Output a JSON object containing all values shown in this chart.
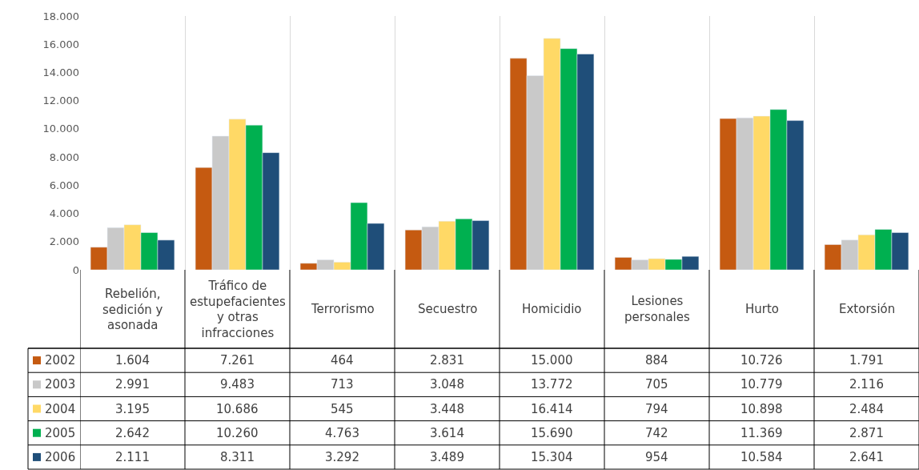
{
  "chart_data": {
    "type": "bar",
    "categories": [
      "Rebelión, sedición y asonada",
      "Tráfico de estupefacientes y otras infracciones",
      "Terrorismo",
      "Secuestro",
      "Homicidio",
      "Lesiones personales",
      "Hurto",
      "Extorsión"
    ],
    "series": [
      {
        "name": "2002",
        "color": "#c55a11",
        "values": [
          1604,
          7261,
          464,
          2831,
          15000,
          884,
          10726,
          1791
        ],
        "value_labels": [
          "1.604",
          "7.261",
          "464",
          "2.831",
          "15.000",
          "884",
          "10.726",
          "1.791"
        ]
      },
      {
        "name": "2003",
        "color": "#c9c9c9",
        "values": [
          2991,
          9483,
          713,
          3048,
          13772,
          705,
          10779,
          2116
        ],
        "value_labels": [
          "2.991",
          "9.483",
          "713",
          "3.048",
          "13.772",
          "705",
          "10.779",
          "2.116"
        ]
      },
      {
        "name": "2004",
        "color": "#ffd966",
        "values": [
          3195,
          10686,
          545,
          3448,
          16414,
          794,
          10898,
          2484
        ],
        "value_labels": [
          "3.195",
          "10.686",
          "545",
          "3.448",
          "16.414",
          "794",
          "10.898",
          "2.484"
        ]
      },
      {
        "name": "2005",
        "color": "#00b050",
        "values": [
          2642,
          10260,
          4763,
          3614,
          15690,
          742,
          11369,
          2871
        ],
        "value_labels": [
          "2.642",
          "10.260",
          "4.763",
          "3.614",
          "15.690",
          "742",
          "11.369",
          "2.871"
        ]
      },
      {
        "name": "2006",
        "color": "#1f4e79",
        "values": [
          2111,
          8311,
          3292,
          3489,
          15304,
          954,
          10584,
          2641
        ],
        "value_labels": [
          "2.111",
          "8.311",
          "3.292",
          "3.489",
          "15.304",
          "954",
          "10.584",
          "2.641"
        ]
      }
    ],
    "legend": "bottom left",
    "ylim": [
      0,
      18000
    ],
    "yticks": [
      {
        "value": 0,
        "label": "0"
      },
      {
        "value": 2000,
        "label": "2.000"
      },
      {
        "value": 4000,
        "label": "4.000"
      },
      {
        "value": 6000,
        "label": "6.000"
      },
      {
        "value": 8000,
        "label": "8.000"
      },
      {
        "value": 10000,
        "label": "10.000"
      },
      {
        "value": 12000,
        "label": "12.000"
      },
      {
        "value": 14000,
        "label": "14.000"
      },
      {
        "value": 16000,
        "label": "16.000"
      },
      {
        "value": 18000,
        "label": "18.000"
      }
    ],
    "grid": "x"
  }
}
